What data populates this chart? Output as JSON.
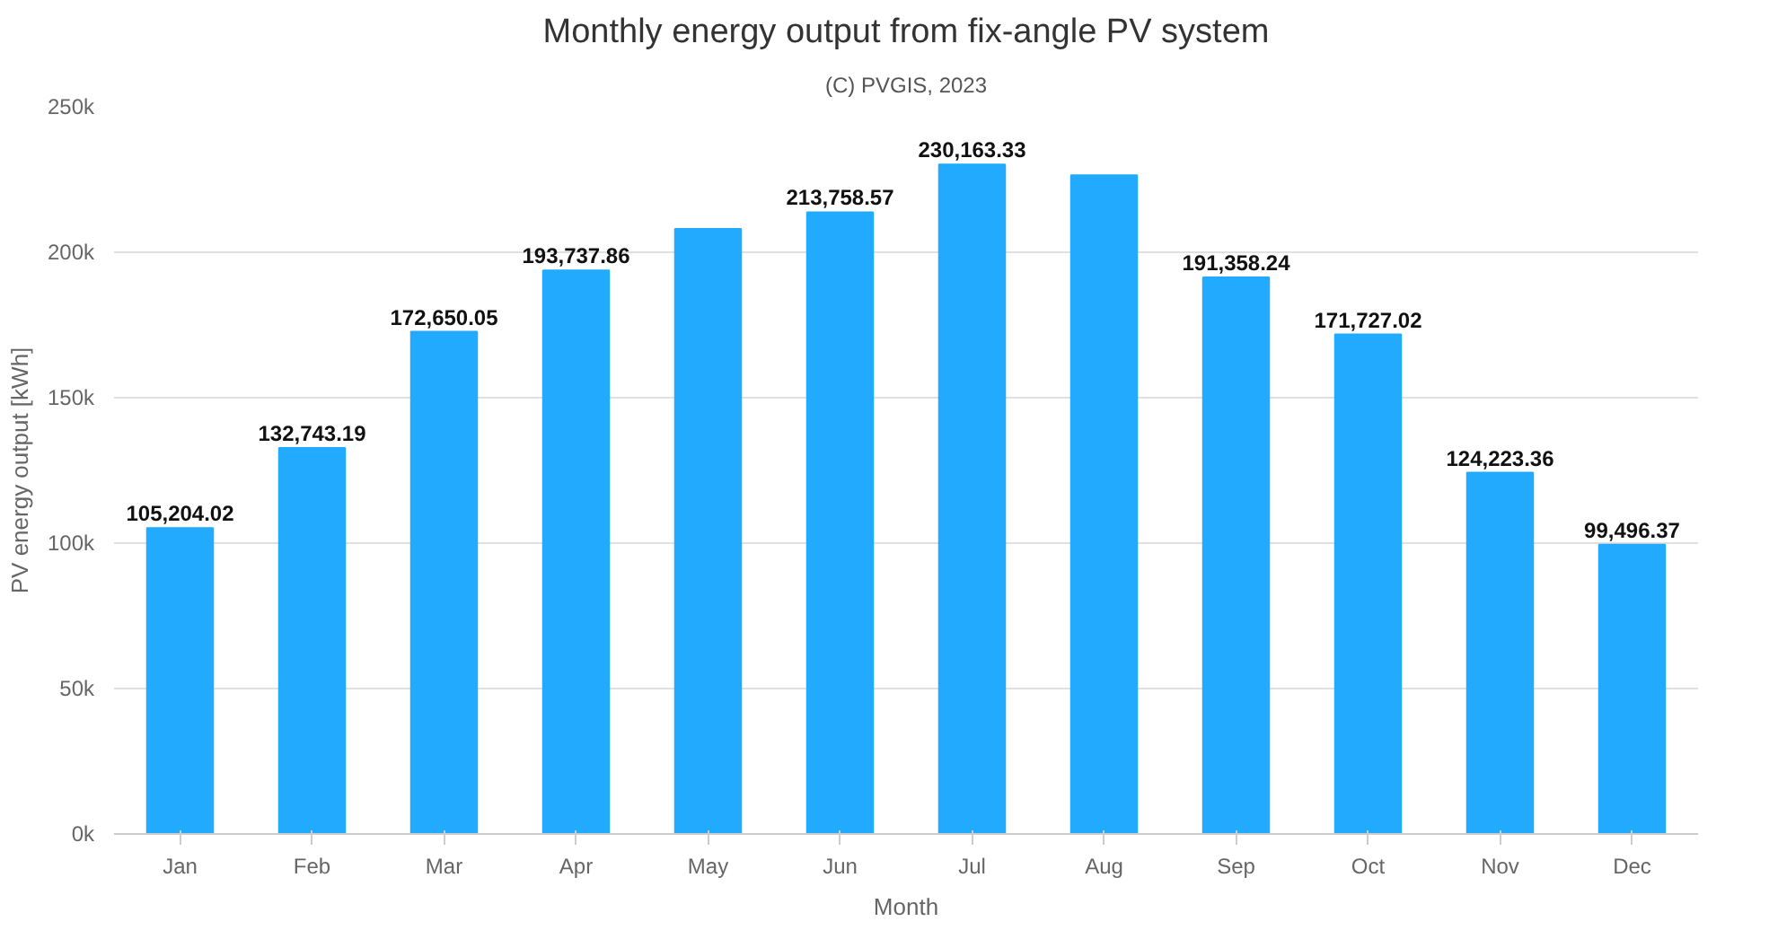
{
  "chart_data": {
    "type": "bar",
    "title": "Monthly energy output from fix-angle PV system",
    "subtitle": "(C) PVGIS, 2023",
    "xlabel": "Month",
    "ylabel": "PV energy output [kWh]",
    "categories": [
      "Jan",
      "Feb",
      "Mar",
      "Apr",
      "May",
      "Jun",
      "Jul",
      "Aug",
      "Sep",
      "Oct",
      "Nov",
      "Dec"
    ],
    "values": [
      105204.02,
      132743.19,
      172650.05,
      193737.86,
      208000,
      213758.57,
      230163.33,
      226500,
      191358.24,
      171727.02,
      124223.36,
      99496.37
    ],
    "value_labels": [
      "105,204.02",
      "132,743.19",
      "172,650.05",
      "193,737.86",
      null,
      "213,758.57",
      "230,163.33",
      null,
      "191,358.24",
      "171,727.02",
      "124,223.36",
      "99,496.37"
    ],
    "color": "#22aaff",
    "ylim": [
      0,
      250000
    ],
    "yticks": [
      {
        "value": 0,
        "label": "0k"
      },
      {
        "value": 50000,
        "label": "50k"
      },
      {
        "value": 100000,
        "label": "100k"
      },
      {
        "value": 150000,
        "label": "150k"
      },
      {
        "value": 200000,
        "label": "200k"
      },
      {
        "value": 250000,
        "label": "250k"
      }
    ],
    "grid": "y"
  }
}
